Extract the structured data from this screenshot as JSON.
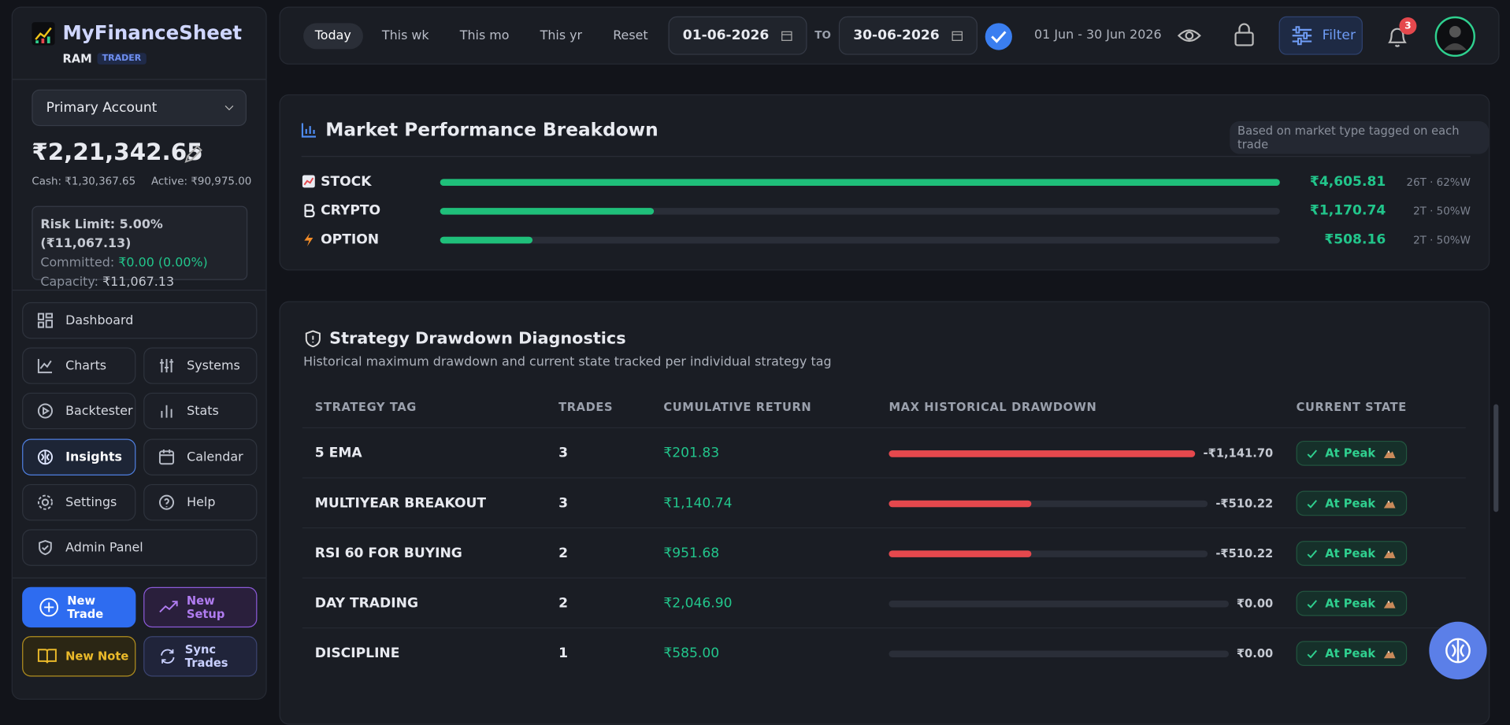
{
  "sidebar": {
    "brand": "MyFinanceSheet",
    "user": "RAM",
    "role": "TRADER",
    "account": "Primary Account",
    "balance": "₹2,21,342.65",
    "cash": "Cash: ₹1,30,367.65",
    "active": "Active: ₹90,975.00",
    "risk_limit": "Risk Limit: 5.00% (₹11,067.13)",
    "committed_label": "Committed:",
    "committed": "₹0.00 (0.00%)",
    "capacity_label": "Capacity:",
    "capacity": "₹11,067.13",
    "nav": [
      "Dashboard",
      "Charts",
      "Systems",
      "Backtester",
      "Stats",
      "Insights",
      "Calendar",
      "Settings",
      "Help",
      "Admin Panel"
    ],
    "actions": [
      "New Trade",
      "New Setup",
      "New Note",
      "Sync Trades"
    ]
  },
  "topbar": {
    "ranges": [
      "Today",
      "This wk",
      "This mo",
      "This yr",
      "Reset"
    ],
    "from": "01-06-2026",
    "to_label": "TO",
    "to": "30-06-2026",
    "range_text": "01 Jun - 30 Jun 2026",
    "filter": "Filter",
    "notifications": "3"
  },
  "market": {
    "title": "Market Performance Breakdown",
    "note": "Based on market type tagged on each trade",
    "rows": [
      {
        "name": "STOCK",
        "pnl": {
          "value": 4605.81,
          "label": "₹4,605.81"
        },
        "stats": "26T · 62%W"
      },
      {
        "name": "CRYPTO",
        "pnl": {
          "value": 1170.74,
          "label": "₹1,170.74"
        },
        "stats": "2T · 50%W"
      },
      {
        "name": "OPTION",
        "pnl": {
          "value": 508.16,
          "label": "₹508.16"
        },
        "stats": "2T · 50%W"
      }
    ]
  },
  "strategy": {
    "title": "Strategy Drawdown Diagnostics",
    "subtitle": "Historical maximum drawdown and current state tracked per individual strategy tag",
    "columns": [
      "STRATEGY TAG",
      "TRADES",
      "CUMULATIVE RETURN",
      "MAX HISTORICAL DRAWDOWN",
      "CURRENT STATE"
    ],
    "rows": [
      {
        "tag": "5 EMA",
        "trades": 3,
        "return": "₹201.83",
        "drawdown": {
          "value": -1141.7,
          "label": "-₹1,141.70"
        },
        "state": "At Peak"
      },
      {
        "tag": "MULTIYEAR BREAKOUT",
        "trades": 3,
        "return": "₹1,140.74",
        "drawdown": {
          "value": -510.22,
          "label": "-₹510.22"
        },
        "state": "At Peak"
      },
      {
        "tag": "RSI 60 FOR BUYING",
        "trades": 2,
        "return": "₹951.68",
        "drawdown": {
          "value": -510.22,
          "label": "-₹510.22"
        },
        "state": "At Peak"
      },
      {
        "tag": "DAY TRADING",
        "trades": 2,
        "return": "₹2,046.90",
        "drawdown": {
          "value": 0,
          "label": "₹0.00"
        },
        "state": "At Peak"
      },
      {
        "tag": "DISCIPLINE",
        "trades": 1,
        "return": "₹585.00",
        "drawdown": {
          "value": 0,
          "label": "₹0.00"
        },
        "state": "At Peak"
      }
    ]
  }
}
